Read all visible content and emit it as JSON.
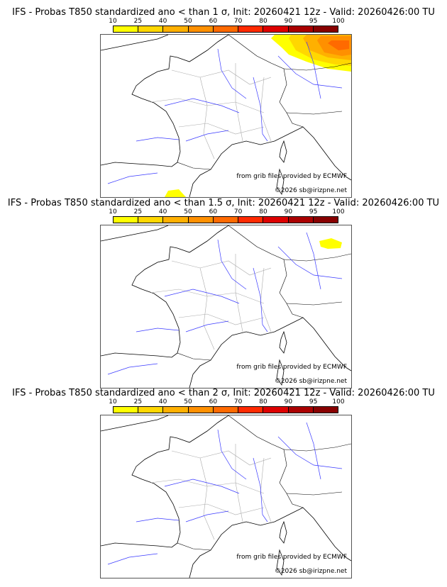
{
  "panels": [
    {
      "title": "IFS - Probas T850  standardized ano < than 1 σ, Init: 20260421 12z - Valid: 20260426:00 TU",
      "prob_area": "large"
    },
    {
      "title": "IFS - Probas T850  standardized ano < than 1.5 σ, Init: 20260421 12z - Valid: 20260426:00 TU",
      "prob_area": "small"
    },
    {
      "title": "IFS - Probas T850  standardized ano < than 2 σ, Init: 20260421 12z - Valid: 20260426:00 TU",
      "prob_area": "none"
    }
  ],
  "colorbar": {
    "ticks": [
      "10",
      "25",
      "40",
      "50",
      "60",
      "70",
      "80",
      "90",
      "95",
      "100"
    ],
    "colors": [
      "#ffff00",
      "#ffd700",
      "#ffb000",
      "#ff9000",
      "#ff6a00",
      "#ff2a00",
      "#dd0000",
      "#aa0000",
      "#880000",
      "#5e0000"
    ]
  },
  "credits": {
    "source": "from grib files provided by ECMWF",
    "copyright": "©2026 sb@irizpne.net"
  }
}
